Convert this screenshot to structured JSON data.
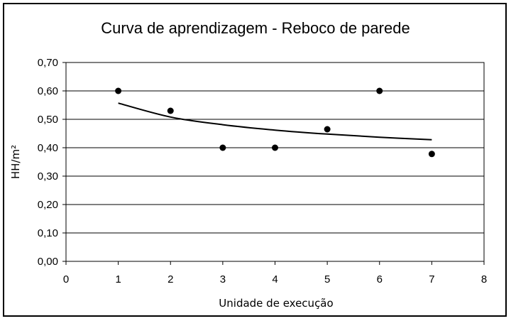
{
  "chart_data": {
    "type": "scatter",
    "title": "Curva de aprendizagem - Reboco de parede",
    "xlabel": "Unidade de execução",
    "ylabel": "HH/m²",
    "xlim": [
      0,
      8
    ],
    "ylim": [
      0,
      0.7
    ],
    "x_ticks": [
      "0",
      "1",
      "2",
      "3",
      "4",
      "5",
      "6",
      "7",
      "8"
    ],
    "y_ticks": [
      "0,00",
      "0,10",
      "0,20",
      "0,30",
      "0,40",
      "0,50",
      "0,60",
      "0,70"
    ],
    "grid": "horizontal",
    "series": [
      {
        "points": [
          {
            "x": 1,
            "y": 0.6
          },
          {
            "x": 2,
            "y": 0.53
          },
          {
            "x": 3,
            "y": 0.4
          },
          {
            "x": 4,
            "y": 0.4
          },
          {
            "x": 5,
            "y": 0.465
          },
          {
            "x": 6,
            "y": 0.6
          },
          {
            "x": 7,
            "y": 0.378
          }
        ]
      }
    ],
    "trendline": {
      "type": "power",
      "points": [
        {
          "x": 1,
          "y": 0.557
        },
        {
          "x": 2,
          "y": 0.508
        },
        {
          "x": 3,
          "y": 0.481
        },
        {
          "x": 4,
          "y": 0.462
        },
        {
          "x": 5,
          "y": 0.448
        },
        {
          "x": 6,
          "y": 0.437
        },
        {
          "x": 7,
          "y": 0.428
        }
      ]
    },
    "colors": {
      "marker": "#000000",
      "grid": "#000000",
      "plot_bg": "#ffffff"
    }
  }
}
